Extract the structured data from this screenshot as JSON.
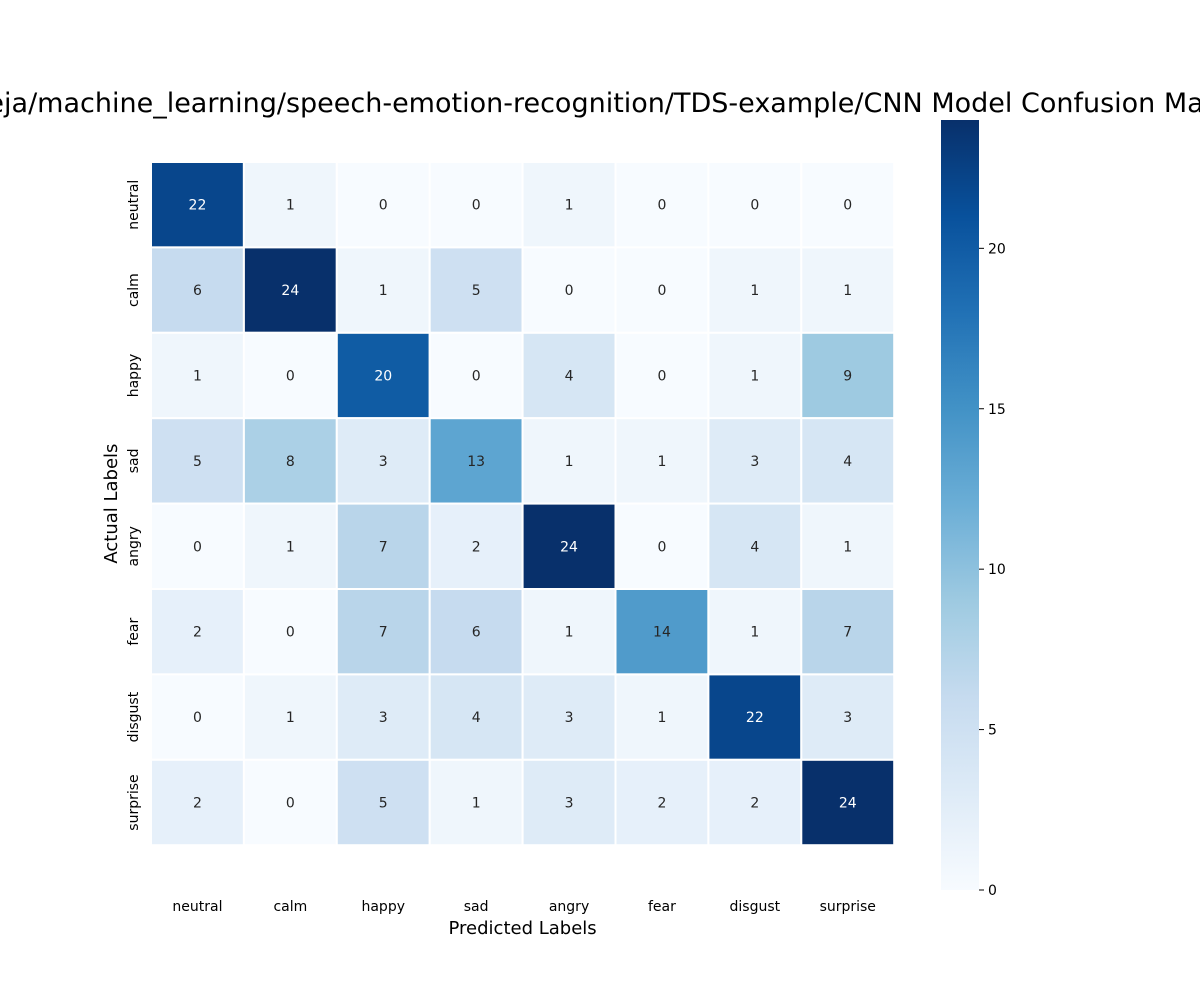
{
  "chart_data": {
    "type": "heatmap",
    "title": "...reja/machine_learning/speech-emotion-recognition/TDS-example/CNN Model Confusion Matrix",
    "xlabel": "Predicted Labels",
    "ylabel": "Actual Labels",
    "x_categories": [
      "neutral",
      "calm",
      "happy",
      "sad",
      "angry",
      "fear",
      "disgust",
      "surprise"
    ],
    "y_categories": [
      "neutral",
      "calm",
      "happy",
      "sad",
      "angry",
      "fear",
      "disgust",
      "surprise"
    ],
    "values": [
      [
        22,
        1,
        0,
        0,
        1,
        0,
        0,
        0
      ],
      [
        6,
        24,
        1,
        5,
        0,
        0,
        1,
        1
      ],
      [
        1,
        0,
        20,
        0,
        4,
        0,
        1,
        9
      ],
      [
        5,
        8,
        3,
        13,
        1,
        1,
        3,
        4
      ],
      [
        0,
        1,
        7,
        2,
        24,
        0,
        4,
        1
      ],
      [
        2,
        0,
        7,
        6,
        1,
        14,
        1,
        7
      ],
      [
        0,
        1,
        3,
        4,
        3,
        1,
        22,
        3
      ],
      [
        2,
        0,
        5,
        1,
        3,
        2,
        2,
        24
      ]
    ],
    "colormap": "Blues",
    "vmin": 0,
    "vmax": 24,
    "colorbar": {
      "ticks": [
        0,
        5,
        10,
        15,
        20
      ]
    },
    "grid": false
  }
}
